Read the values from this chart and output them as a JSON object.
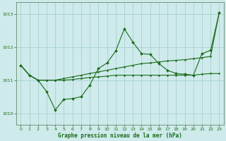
{
  "title": "Graphe pression niveau de la mer (hPa)",
  "background_color": "#ceeaea",
  "grid_color": "#a0cccc",
  "line_color": "#1a6b1a",
  "xlim": [
    -0.5,
    23.5
  ],
  "ylim": [
    1009.65,
    1013.35
  ],
  "yticks": [
    1010,
    1011,
    1012,
    1013
  ],
  "xticks": [
    0,
    1,
    2,
    3,
    4,
    5,
    6,
    7,
    8,
    9,
    10,
    11,
    12,
    13,
    14,
    15,
    16,
    17,
    18,
    19,
    20,
    21,
    22,
    23
  ],
  "s1_x": [
    0,
    1,
    2,
    3,
    4,
    5,
    6,
    7,
    8,
    9,
    10,
    11,
    12,
    13,
    14,
    15,
    16,
    17,
    18,
    19,
    20,
    21,
    22,
    23
  ],
  "s1_y": [
    1011.45,
    1011.15,
    1011.0,
    1011.0,
    1011.0,
    1011.05,
    1011.1,
    1011.15,
    1011.2,
    1011.25,
    1011.3,
    1011.35,
    1011.4,
    1011.45,
    1011.5,
    1011.52,
    1011.55,
    1011.58,
    1011.6,
    1011.62,
    1011.65,
    1011.68,
    1011.72,
    1013.05
  ],
  "s2_x": [
    0,
    1,
    2,
    3,
    4,
    5,
    6,
    7,
    8,
    9,
    10,
    11,
    12,
    13,
    14,
    15,
    16,
    17,
    18,
    19,
    20,
    21,
    22,
    23
  ],
  "s2_y": [
    1011.45,
    1011.15,
    1011.0,
    1010.65,
    1010.1,
    1010.42,
    1010.44,
    1010.5,
    1010.85,
    1011.35,
    1011.52,
    1011.88,
    1012.55,
    1012.15,
    1011.8,
    1011.78,
    1011.5,
    1011.3,
    1011.2,
    1011.18,
    1011.15,
    1011.8,
    1011.9,
    1013.05
  ],
  "s3_x": [
    0,
    1,
    2,
    3,
    4,
    5,
    6,
    7,
    8,
    9,
    10,
    11,
    12,
    13,
    14,
    15,
    16,
    17,
    18,
    19,
    20,
    21,
    22,
    23
  ],
  "s3_y": [
    1011.45,
    1011.15,
    1011.0,
    1011.0,
    1011.0,
    1011.0,
    1011.02,
    1011.05,
    1011.08,
    1011.1,
    1011.12,
    1011.15,
    1011.15,
    1011.15,
    1011.15,
    1011.15,
    1011.15,
    1011.15,
    1011.15,
    1011.15,
    1011.15,
    1011.18,
    1011.2,
    1011.2
  ]
}
